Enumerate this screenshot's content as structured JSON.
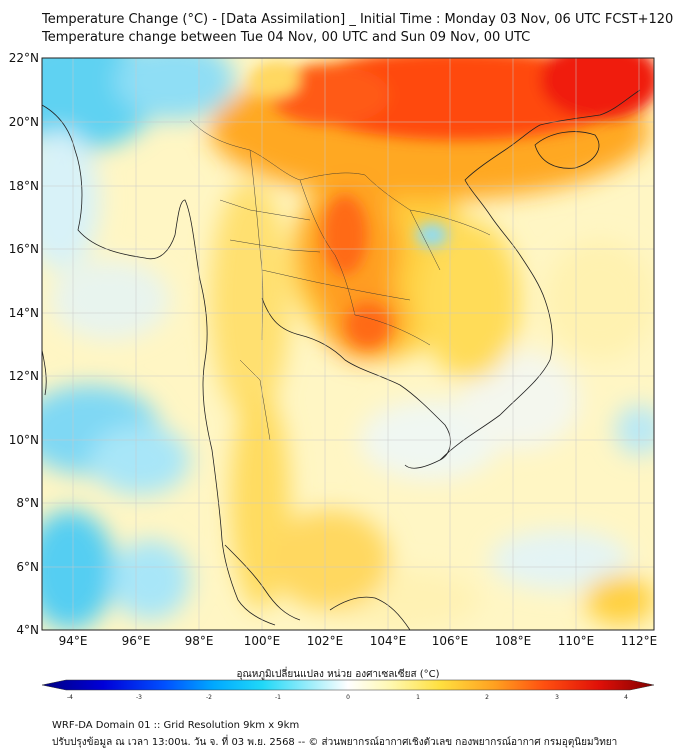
{
  "title_line1": "Temperature Change (°C) - [Data Assimilation] _ Initial Time : Monday 03 Nov, 06 UTC FCST+120",
  "title_line2": "Temperature change between Tue 04 Nov, 00 UTC and Sun 09 Nov, 00 UTC",
  "map": {
    "lat_labels": [
      "22°N",
      "20°N",
      "18°N",
      "16°N",
      "14°N",
      "12°N",
      "10°N",
      "8°N",
      "6°N",
      "4°N"
    ],
    "lon_labels": [
      "94°E",
      "96°E",
      "98°E",
      "100°E",
      "102°E",
      "104°E",
      "106°E",
      "108°E",
      "110°E",
      "112°E"
    ],
    "colors": {
      "cold": "#35c8f0",
      "cool": "#a8e6f8",
      "neutral": "#f4f7f4",
      "pale_yellow": "#fff5b8",
      "yellow": "#ffe15a",
      "orange": "#ffb02a",
      "red_orange": "#ff5a10",
      "red": "#f01e0a"
    }
  },
  "colorbar": {
    "title": "อุณหภูมิเปลี่ยนแปลง หน่วย องศาเซลเซียส (°C)",
    "ticks": [
      "-4",
      "-3",
      "-2",
      "-1",
      "0",
      "1",
      "2",
      "3",
      "4"
    ],
    "colors": [
      "#000080",
      "#0000d8",
      "#0050ff",
      "#00a8ff",
      "#20d8f8",
      "#a0eefa",
      "#ffffff",
      "#fff8b0",
      "#ffe040",
      "#ffa020",
      "#ff5010",
      "#e01008",
      "#800000"
    ]
  },
  "footer_line1": "WRF-DA Domain 01 :: Grid Resolution 9km x 9km",
  "footer_line2": "ปรับปรุงข้อมูล ณ เวลา 13:00น. วัน จ. ที่ 03 พ.ย. 2568 -- © ส่วนพยากรณ์อากาศเชิงตัวเลข กองพยากรณ์อากาศ กรมอุตุนิยมวิทยา"
}
